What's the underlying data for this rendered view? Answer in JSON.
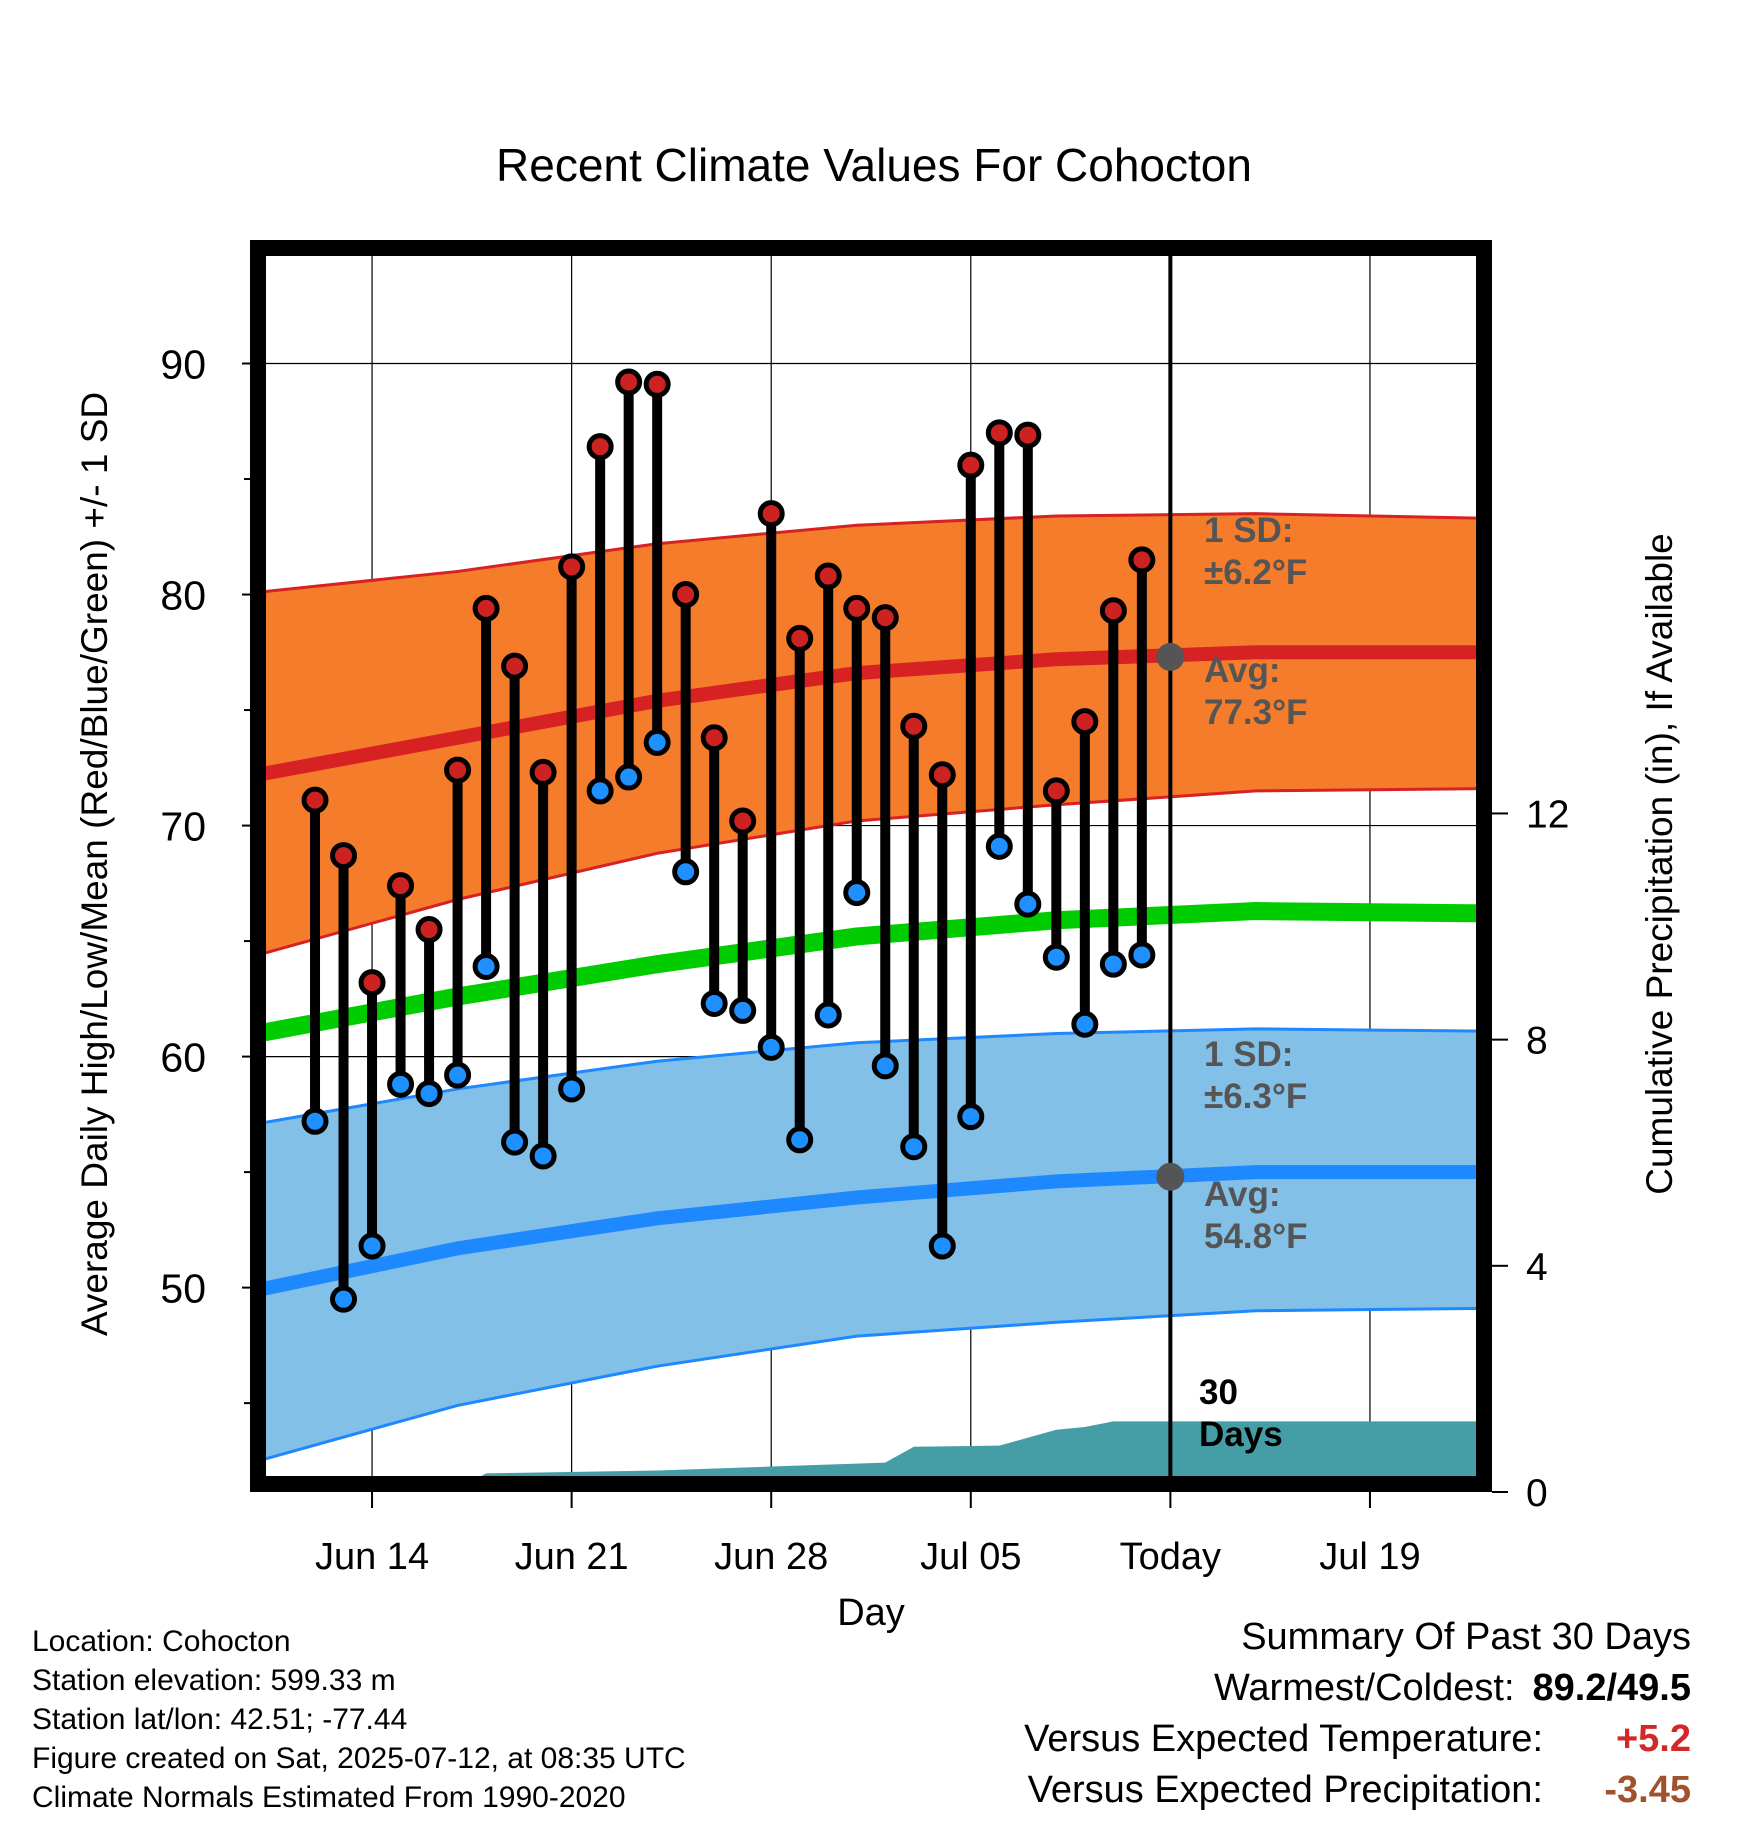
{
  "chart_data": {
    "type": "line",
    "title": "Recent Climate Values For Cohocton",
    "xlabel": "Day",
    "ylabel": "Average Daily High/Low/Mean (Red/Blue/Green) +/- 1 SD",
    "y2label": "Cumulative Precipitation (in), If Available",
    "ylim": [
      41.5,
      95
    ],
    "y2lim": [
      0,
      22
    ],
    "xlim": [
      "2025-06-10",
      "2025-07-23"
    ],
    "yticks": [
      90,
      80,
      70,
      60,
      50
    ],
    "y2ticks": [
      12,
      8,
      4,
      0
    ],
    "xticks": [
      {
        "date": "2025-06-14",
        "label": "Jun 14"
      },
      {
        "date": "2025-06-21",
        "label": "Jun 21"
      },
      {
        "date": "2025-06-28",
        "label": "Jun 28"
      },
      {
        "date": "2025-07-05",
        "label": "Jul 05"
      },
      {
        "date": "2025-07-12",
        "label": "Today"
      },
      {
        "date": "2025-07-19",
        "label": "Jul 19"
      }
    ],
    "grid": true,
    "days": [
      "2025-06-12",
      "2025-06-13",
      "2025-06-14",
      "2025-06-15",
      "2025-06-16",
      "2025-06-17",
      "2025-06-18",
      "2025-06-19",
      "2025-06-20",
      "2025-06-21",
      "2025-06-22",
      "2025-06-23",
      "2025-06-24",
      "2025-06-25",
      "2025-06-26",
      "2025-06-27",
      "2025-06-28",
      "2025-06-29",
      "2025-06-30",
      "2025-07-01",
      "2025-07-02",
      "2025-07-03",
      "2025-07-04",
      "2025-07-05",
      "2025-07-06",
      "2025-07-07",
      "2025-07-08",
      "2025-07-09",
      "2025-07-10",
      "2025-07-11"
    ],
    "series": [
      {
        "name": "High",
        "color": "#cc2222",
        "values": [
          71.1,
          68.7,
          63.2,
          67.4,
          65.5,
          72.4,
          79.4,
          76.9,
          72.3,
          81.2,
          86.4,
          89.2,
          89.1,
          80.0,
          73.8,
          70.2,
          83.5,
          78.1,
          80.8,
          79.4,
          79.0,
          74.3,
          72.2,
          85.6,
          87.0,
          86.9,
          71.5,
          74.5,
          79.3,
          81.5
        ]
      },
      {
        "name": "Low",
        "color": "#1e90ff",
        "values": [
          57.2,
          49.5,
          51.8,
          58.8,
          58.4,
          59.2,
          63.9,
          56.3,
          55.7,
          58.6,
          71.5,
          72.1,
          73.6,
          68.0,
          62.3,
          62.0,
          60.4,
          56.4,
          61.8,
          67.1,
          59.6,
          56.1,
          51.8,
          57.4,
          69.1,
          66.6,
          64.3,
          61.4,
          64.0,
          64.4
        ]
      }
    ],
    "normals": {
      "dates": [
        "2025-06-10",
        "2025-06-17",
        "2025-06-24",
        "2025-07-01",
        "2025-07-08",
        "2025-07-15",
        "2025-07-23"
      ],
      "high_mean": [
        72.2,
        73.8,
        75.4,
        76.6,
        77.2,
        77.5,
        77.5
      ],
      "high_upper": [
        80.1,
        81.0,
        82.2,
        83.0,
        83.4,
        83.5,
        83.3
      ],
      "high_lower": [
        64.4,
        66.8,
        68.8,
        70.2,
        70.9,
        71.5,
        71.6
      ],
      "mean": [
        61.0,
        62.6,
        64.0,
        65.2,
        65.9,
        66.3,
        66.2
      ],
      "low_mean": [
        49.9,
        51.7,
        53.0,
        53.9,
        54.6,
        55.0,
        55.0
      ],
      "low_upper": [
        57.1,
        58.6,
        59.8,
        60.6,
        61.0,
        61.2,
        61.1
      ],
      "low_lower": [
        42.5,
        44.9,
        46.6,
        47.9,
        48.5,
        49.0,
        49.1
      ]
    },
    "precipitation": {
      "dates": [
        "2025-06-10",
        "2025-06-17",
        "2025-06-17",
        "2025-06-18",
        "2025-06-24",
        "2025-06-28",
        "2025-07-02",
        "2025-07-03",
        "2025-07-06",
        "2025-07-08",
        "2025-07-09",
        "2025-07-10",
        "2025-07-23"
      ],
      "values": [
        0,
        0,
        0.05,
        0.33,
        0.38,
        0.45,
        0.52,
        0.8,
        0.82,
        1.1,
        1.15,
        1.25,
        1.25
      ]
    },
    "annotations": {
      "high_sd_label": "1 SD:",
      "high_sd_value": "±6.2°F",
      "high_avg_label": "Avg:",
      "high_avg_value": "77.3°F",
      "high_avg_today": 77.3,
      "low_sd_label": "1 SD:",
      "low_sd_value": "±6.3°F",
      "low_avg_label": "Avg:",
      "low_avg_value": "54.8°F",
      "low_avg_today": 54.8,
      "today_date": "2025-07-12",
      "window_number": "30",
      "window_unit": "Days"
    }
  },
  "footer": {
    "location": "Location: Cohocton",
    "elevation": "Station elevation: 599.33 m",
    "latlon": "Station lat/lon: 42.51; -77.44",
    "created": "Figure created on Sat, 2025-07-12, at 08:35 UTC",
    "normals": "Climate Normals Estimated From 1990-2020"
  },
  "summary": {
    "title": "Summary Of Past 30 Days",
    "warm_cold_label": "Warmest/Coldest:",
    "warm_cold_value": "89.2/49.5",
    "temp_label": "Versus Expected Temperature:",
    "temp_value": "+5.2",
    "temp_color": "#d62728",
    "precip_label": "Versus Expected Precipitation:",
    "precip_value": "-3.45",
    "precip_color": "#a0522d"
  },
  "colors": {
    "high_band": "#f57c2b",
    "high_line": "#d62222",
    "low_band": "#82c0e8",
    "low_line": "#1e88ff",
    "mean_line": "#00cc00",
    "precip_fill": "#459ea5",
    "high_dot": "#cc2222",
    "low_dot": "#1e90ff"
  }
}
